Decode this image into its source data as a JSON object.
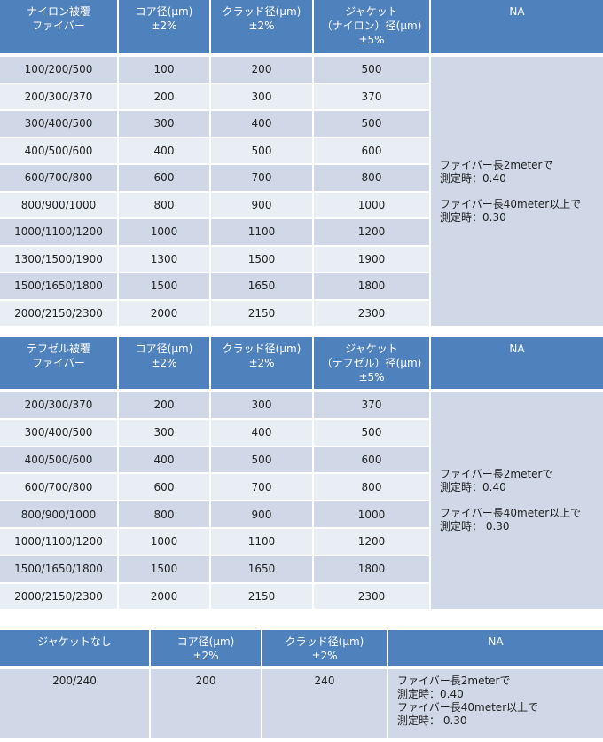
{
  "colors": {
    "header": "#4f81bd",
    "row_odd": "#d0d8e8",
    "row_even": "#e9edf4"
  },
  "table1": {
    "headers": [
      "ナイロン被覆\nファイバー",
      "コア径(μm)\n±2%",
      "クラッド径(μm)\n±2%",
      "ジャケット\n（ナイロン）径(μm)\n±5%",
      "NA"
    ],
    "rows": [
      [
        "100/200/500",
        "100",
        "200",
        "500"
      ],
      [
        "200/300/370",
        "200",
        "300",
        "370"
      ],
      [
        "300/400/500",
        "300",
        "400",
        "500"
      ],
      [
        "400/500/600",
        "400",
        "500",
        "600"
      ],
      [
        "600/700/800",
        "600",
        "700",
        "800"
      ],
      [
        "800/900/1000",
        "800",
        "900",
        "1000"
      ],
      [
        "1000/1100/1200",
        "1000",
        "1100",
        "1200"
      ],
      [
        "1300/1500/1900",
        "1300",
        "1500",
        "1900"
      ],
      [
        "1500/1650/1800",
        "1500",
        "1650",
        "1800"
      ],
      [
        "2000/2150/2300",
        "2000",
        "2150",
        "2300"
      ]
    ],
    "na": [
      "ファイバー長2meterで",
      "測定時：0.40",
      "ファイバー長40meter以上で",
      "測定時：0.30"
    ]
  },
  "table2": {
    "headers": [
      "テフゼル被覆\nファイバー",
      "コア径(μm)\n±2%",
      "クラッド径(μm)\n±2%",
      "ジャケット\n（テフゼル）径(μm)\n±5%",
      "NA"
    ],
    "rows": [
      [
        "200/300/370",
        "200",
        "300",
        "370"
      ],
      [
        "300/400/500",
        "300",
        "400",
        "500"
      ],
      [
        "400/500/600",
        "400",
        "500",
        "600"
      ],
      [
        "600/700/800",
        "600",
        "700",
        "800"
      ],
      [
        "800/900/1000",
        "800",
        "900",
        "1000"
      ],
      [
        "1000/1100/1200",
        "1000",
        "1100",
        "1200"
      ],
      [
        "1500/1650/1800",
        "1500",
        "1650",
        "1800"
      ],
      [
        "2000/2150/2300",
        "2000",
        "2150",
        "2300"
      ]
    ],
    "na": [
      "ファイバー長2meterで",
      "測定時：0.40",
      "ファイバー長40meter以上で",
      "測定時： 0.30"
    ]
  },
  "table3": {
    "headers": [
      "ジャケットなし",
      "コア径(μm)\n±2%",
      "クラッド径(μm)\n±2%",
      "NA"
    ],
    "rows": [
      [
        "200/240",
        "200",
        "240"
      ]
    ],
    "na": [
      "ファイバー長2meterで",
      "測定時：0.40",
      "ファイバー長40meter以上で",
      "測定時： 0.30"
    ]
  }
}
